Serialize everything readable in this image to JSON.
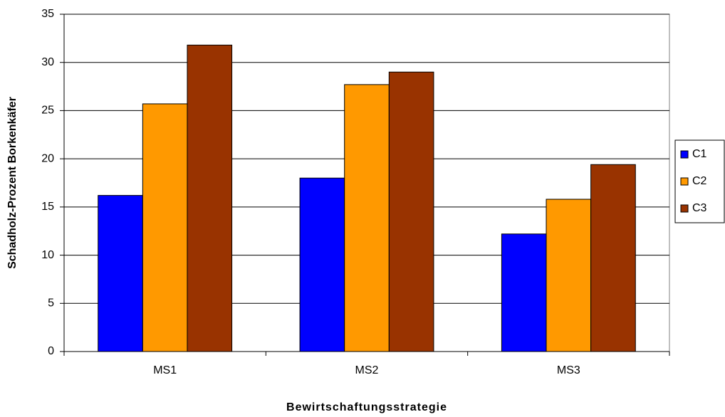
{
  "chart_data": {
    "type": "bar",
    "x_label": "Bewirtschaftungsstrategie",
    "y_label": "Schadholz-Prozent Borkenkäfer",
    "categories": [
      "MS1",
      "MS2",
      "MS3"
    ],
    "series": [
      {
        "name": "C1",
        "color": "#0000ff",
        "values": [
          16.2,
          18.0,
          12.2
        ]
      },
      {
        "name": "C2",
        "color": "#ff9900",
        "values": [
          25.7,
          27.7,
          15.8
        ]
      },
      {
        "name": "C3",
        "color": "#993300",
        "values": [
          31.8,
          29.0,
          19.4
        ]
      }
    ],
    "ylim": [
      0,
      35
    ],
    "yticks": [
      0,
      5,
      10,
      15,
      20,
      25,
      30,
      35
    ],
    "grid": true,
    "legend": "right"
  }
}
